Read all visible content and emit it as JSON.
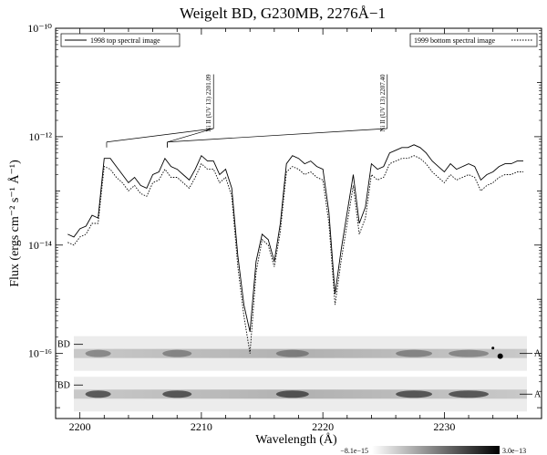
{
  "chart_data": {
    "type": "line",
    "title": "Weigelt BD, G230MB, 2276Å−1",
    "xlabel": "Wavelength (Å)",
    "ylabel": "Flux (ergs cm⁻² s⁻¹ Å⁻¹)",
    "xlim": [
      2198,
      2238
    ],
    "ylim_log10": [
      -17.2,
      -10
    ],
    "yscale": "log",
    "x_ticks": [
      2200,
      2210,
      2220,
      2230
    ],
    "y_ticks": [
      {
        "exp": -10,
        "label": "10⁻¹⁰"
      },
      {
        "exp": -12,
        "label": "10⁻¹²"
      },
      {
        "exp": -14,
        "label": "10⁻¹⁴"
      },
      {
        "exp": -16,
        "label": "10⁻¹⁶"
      }
    ],
    "series": [
      {
        "name": "1998 top spectral image",
        "style": "solid",
        "x": [
          2199.0,
          2199.5,
          2200.0,
          2200.5,
          2201.0,
          2201.5,
          2202.0,
          2202.5,
          2203.0,
          2203.5,
          2204.0,
          2204.5,
          2205.0,
          2205.5,
          2206.0,
          2206.5,
          2207.0,
          2207.5,
          2208.0,
          2208.5,
          2209.0,
          2209.5,
          2210.0,
          2210.5,
          2211.0,
          2211.5,
          2212.0,
          2212.5,
          2213.0,
          2213.5,
          2214.0,
          2214.5,
          2215.0,
          2215.5,
          2216.0,
          2216.5,
          2217.0,
          2217.5,
          2218.0,
          2218.5,
          2219.0,
          2219.5,
          2220.0,
          2220.5,
          2221.0,
          2221.5,
          2222.0,
          2222.5,
          2223.0,
          2223.5,
          2224.0,
          2224.5,
          2225.0,
          2225.5,
          2226.0,
          2226.5,
          2227.0,
          2227.5,
          2228.0,
          2228.5,
          2229.0,
          2229.5,
          2230.0,
          2230.5,
          2231.0,
          2231.5,
          2232.0,
          2232.5,
          2233.0,
          2233.5,
          2234.0,
          2234.5,
          2235.0,
          2235.5,
          2236.0,
          2236.5
        ],
        "log10_y": [
          -13.8,
          -13.85,
          -13.7,
          -13.65,
          -13.45,
          -13.5,
          -12.4,
          -12.4,
          -12.55,
          -12.7,
          -12.85,
          -12.75,
          -12.9,
          -12.95,
          -12.7,
          -12.65,
          -12.4,
          -12.55,
          -12.6,
          -12.7,
          -12.8,
          -12.6,
          -12.35,
          -12.45,
          -12.45,
          -12.7,
          -12.6,
          -12.95,
          -14.2,
          -15.1,
          -15.6,
          -14.3,
          -13.8,
          -13.9,
          -14.3,
          -13.6,
          -12.5,
          -12.35,
          -12.4,
          -12.5,
          -12.45,
          -12.55,
          -12.6,
          -13.4,
          -14.9,
          -14.1,
          -13.4,
          -12.7,
          -13.6,
          -13.3,
          -12.5,
          -12.6,
          -12.55,
          -12.3,
          -12.25,
          -12.2,
          -12.2,
          -12.15,
          -12.2,
          -12.3,
          -12.45,
          -12.55,
          -12.65,
          -12.5,
          -12.6,
          -12.55,
          -12.5,
          -12.55,
          -12.8,
          -12.7,
          -12.65,
          -12.55,
          -12.5,
          -12.5,
          -12.45,
          -12.45
        ]
      },
      {
        "name": "1999 bottom spectral image",
        "style": "dotted",
        "x": [
          2199.0,
          2199.5,
          2200.0,
          2200.5,
          2201.0,
          2201.5,
          2202.0,
          2202.5,
          2203.0,
          2203.5,
          2204.0,
          2204.5,
          2205.0,
          2205.5,
          2206.0,
          2206.5,
          2207.0,
          2207.5,
          2208.0,
          2208.5,
          2209.0,
          2209.5,
          2210.0,
          2210.5,
          2211.0,
          2211.5,
          2212.0,
          2212.5,
          2213.0,
          2213.5,
          2214.0,
          2214.5,
          2215.0,
          2215.5,
          2216.0,
          2216.5,
          2217.0,
          2217.5,
          2218.0,
          2218.5,
          2219.0,
          2219.5,
          2220.0,
          2220.5,
          2221.0,
          2221.5,
          2222.0,
          2222.5,
          2223.0,
          2223.5,
          2224.0,
          2224.5,
          2225.0,
          2225.5,
          2226.0,
          2226.5,
          2227.0,
          2227.5,
          2228.0,
          2228.5,
          2229.0,
          2229.5,
          2230.0,
          2230.5,
          2231.0,
          2231.5,
          2232.0,
          2232.5,
          2233.0,
          2233.5,
          2234.0,
          2234.5,
          2235.0,
          2235.5,
          2236.0,
          2236.5
        ],
        "log10_y": [
          -13.95,
          -14.0,
          -13.85,
          -13.8,
          -13.6,
          -13.6,
          -12.55,
          -12.6,
          -12.75,
          -12.85,
          -13.0,
          -12.9,
          -13.05,
          -13.1,
          -12.85,
          -12.8,
          -12.6,
          -12.75,
          -12.75,
          -12.85,
          -12.95,
          -12.75,
          -12.5,
          -12.6,
          -12.6,
          -12.85,
          -12.75,
          -13.1,
          -14.4,
          -15.3,
          -16.0,
          -14.5,
          -13.9,
          -14.0,
          -14.4,
          -13.75,
          -12.65,
          -12.55,
          -12.6,
          -12.7,
          -12.65,
          -12.75,
          -12.8,
          -13.6,
          -15.1,
          -14.3,
          -13.6,
          -12.9,
          -13.8,
          -13.5,
          -12.7,
          -12.8,
          -12.75,
          -12.5,
          -12.45,
          -12.4,
          -12.4,
          -12.35,
          -12.4,
          -12.5,
          -12.65,
          -12.75,
          -12.85,
          -12.7,
          -12.8,
          -12.75,
          -12.7,
          -12.75,
          -13.0,
          -12.9,
          -12.85,
          -12.75,
          -12.7,
          -12.7,
          -12.65,
          -12.65
        ]
      }
    ],
    "annotations": [
      {
        "label": "Ni II  (UV 13) 2201.09",
        "targets": [
          2202.2,
          2207.2
        ],
        "anchor_x": 2211.0,
        "top_log10": -10.85,
        "junction_log10": -11.85,
        "target_log10": -12.2
      },
      {
        "label": "Ni II  (UV 13) 2207.40",
        "targets": [
          2207.2
        ],
        "anchor_x": 2225.3,
        "top_log10": -10.85,
        "junction_log10": -11.85,
        "target_log10": -12.2
      }
    ],
    "legend": [
      "1998 top spectral image",
      "1999 bottom spectral image"
    ],
    "legend_position": "top-left and top-right",
    "strips": [
      {
        "label": "BD",
        "right_label": "A",
        "center_log10": -16.0
      },
      {
        "label": "BD",
        "right_label": "A",
        "center_log10": -16.75
      }
    ],
    "colorbar": {
      "min_label": "−8.1e−15",
      "max_label": "3.0e−13"
    },
    "grid": false
  }
}
